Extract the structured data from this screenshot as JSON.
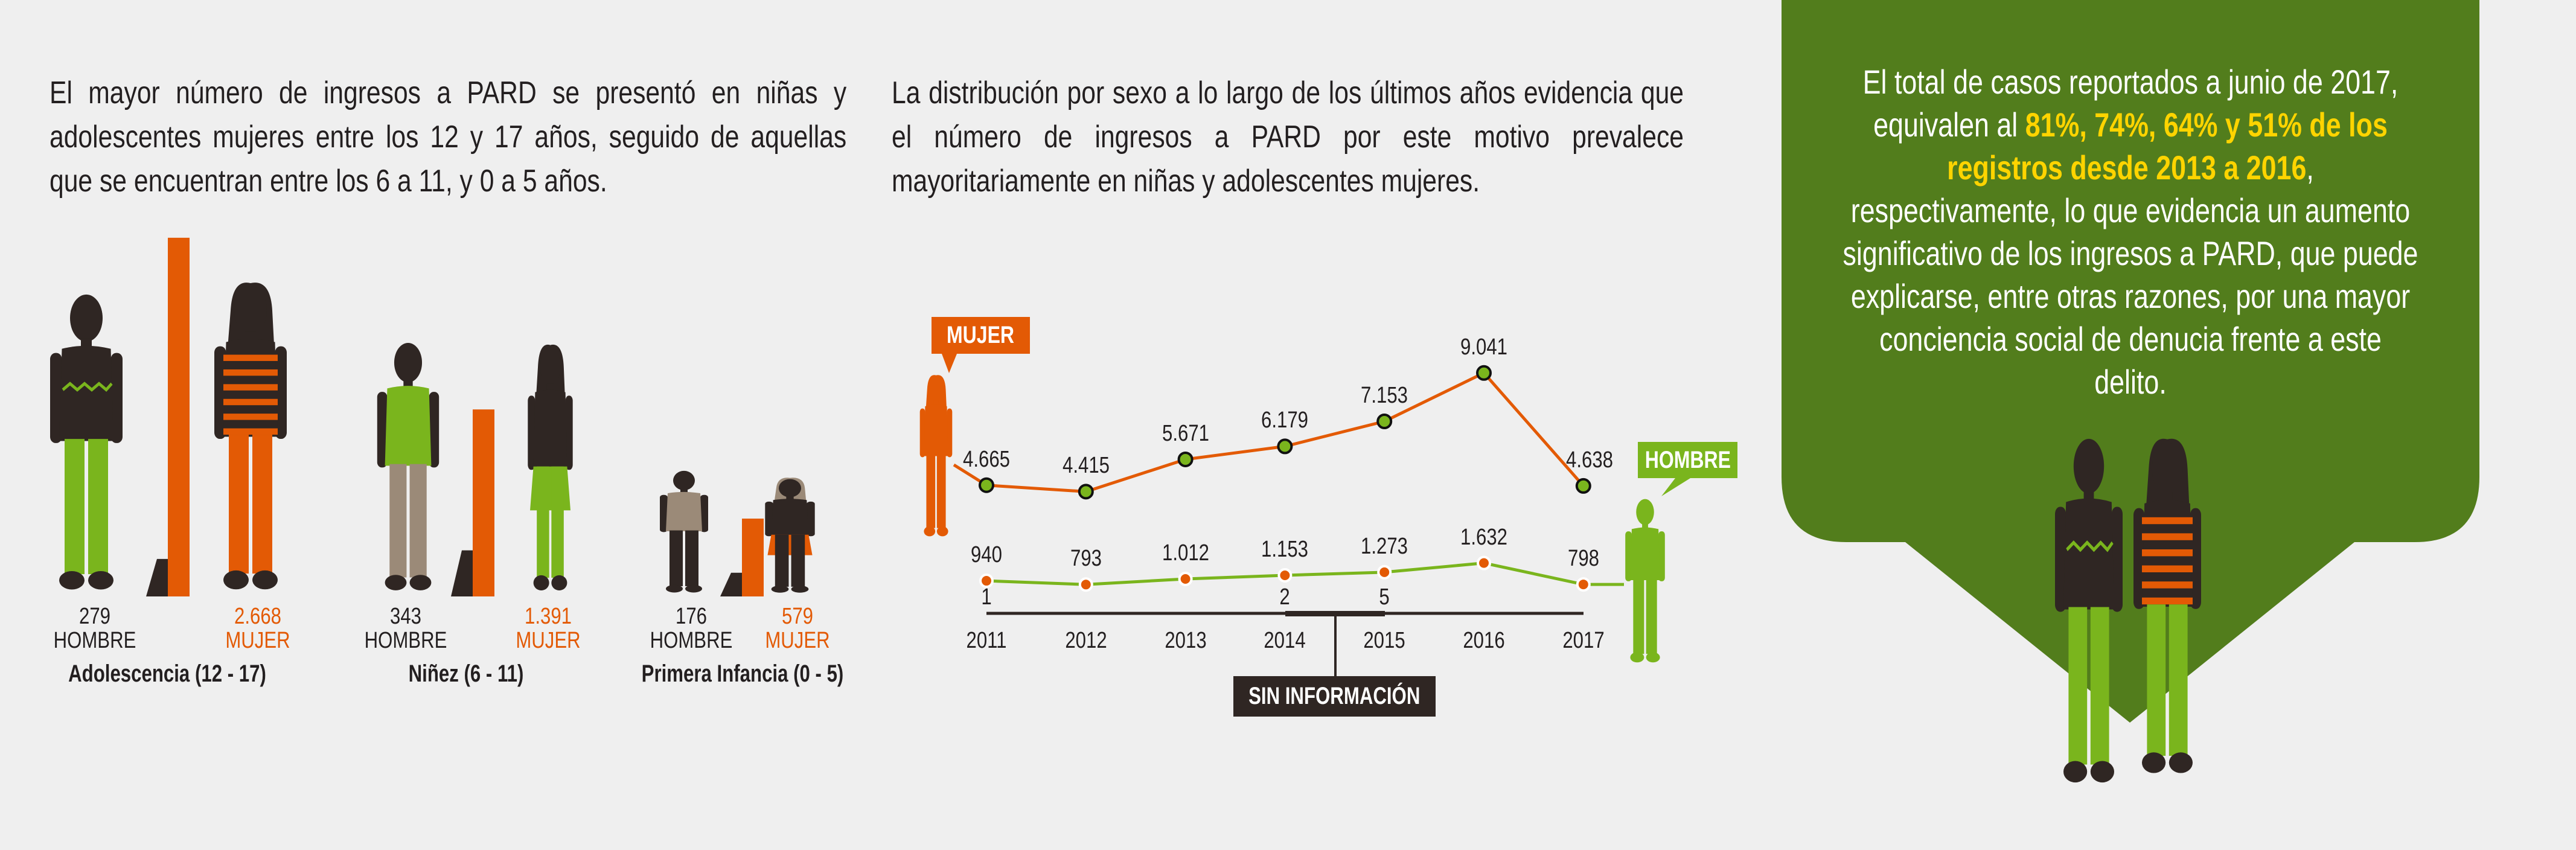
{
  "left_text": "El mayor número de ingresos a PARD se presentó en niñas y adolescentes mujeres entre los 12 y 17 años, seguido de aquellas que se encuentran entre los 6 a 11, y 0 a 5 años.",
  "middle_text": "La distribución por sexo a lo largo de los últimos años evidencia que el número de ingresos a PARD por este motivo prevalece mayoritariamente en niñas y adolescentes mujeres.",
  "panel": {
    "text_before": "El total de casos reportados a junio de 2017, equivalen al ",
    "highlight": "81%, 74%, 64% y 51% de los registros desde 2013 a 2016",
    "text_after": ", respectivamente, lo que evidencia un aumento significativo de los ingresos a PARD, que puede explicarse, entre otras razones, por una mayor conciencia social de denucia frente a este delito."
  },
  "colors": {
    "orange": "#e35a05",
    "green": "#7ab51d",
    "dark": "#2f2623",
    "panel": "#527d1c",
    "highlight": "#ffd400",
    "background": "#efefef"
  },
  "chart_data": [
    {
      "type": "bar",
      "title": "",
      "categories": [
        "Adolescencia (12 - 17)",
        "Niñez (6 - 11)",
        "Primera Infancia (0 - 5)"
      ],
      "series": [
        {
          "name": "HOMBRE",
          "values": [
            279,
            343,
            176
          ],
          "labels": [
            "279",
            "343",
            "176"
          ]
        },
        {
          "name": "MUJER",
          "values": [
            2668,
            1391,
            579
          ],
          "labels": [
            "2.668",
            "1.391",
            "579"
          ]
        }
      ]
    },
    {
      "type": "line",
      "title": "",
      "x": [
        "2011",
        "2012",
        "2013",
        "2014",
        "2015",
        "2016",
        "2017"
      ],
      "series": [
        {
          "name": "MUJER",
          "values": [
            4665,
            4415,
            5671,
            6179,
            7153,
            9041,
            4638
          ],
          "labels": [
            "4.665",
            "4.415",
            "5.671",
            "6.179",
            "7.153",
            "9.041",
            "4.638"
          ]
        },
        {
          "name": "HOMBRE",
          "values": [
            940,
            793,
            1012,
            1153,
            1273,
            1632,
            798
          ],
          "labels": [
            "940",
            "793",
            "1.012",
            "1.153",
            "1.273",
            "1.632",
            "798"
          ]
        }
      ],
      "missing": {
        "name": "SIN INFORMACIÓN",
        "values": [
          1,
          null,
          null,
          2,
          5,
          null,
          null
        ],
        "labels": [
          "1",
          "",
          "",
          "2",
          "5",
          "",
          ""
        ]
      }
    }
  ]
}
